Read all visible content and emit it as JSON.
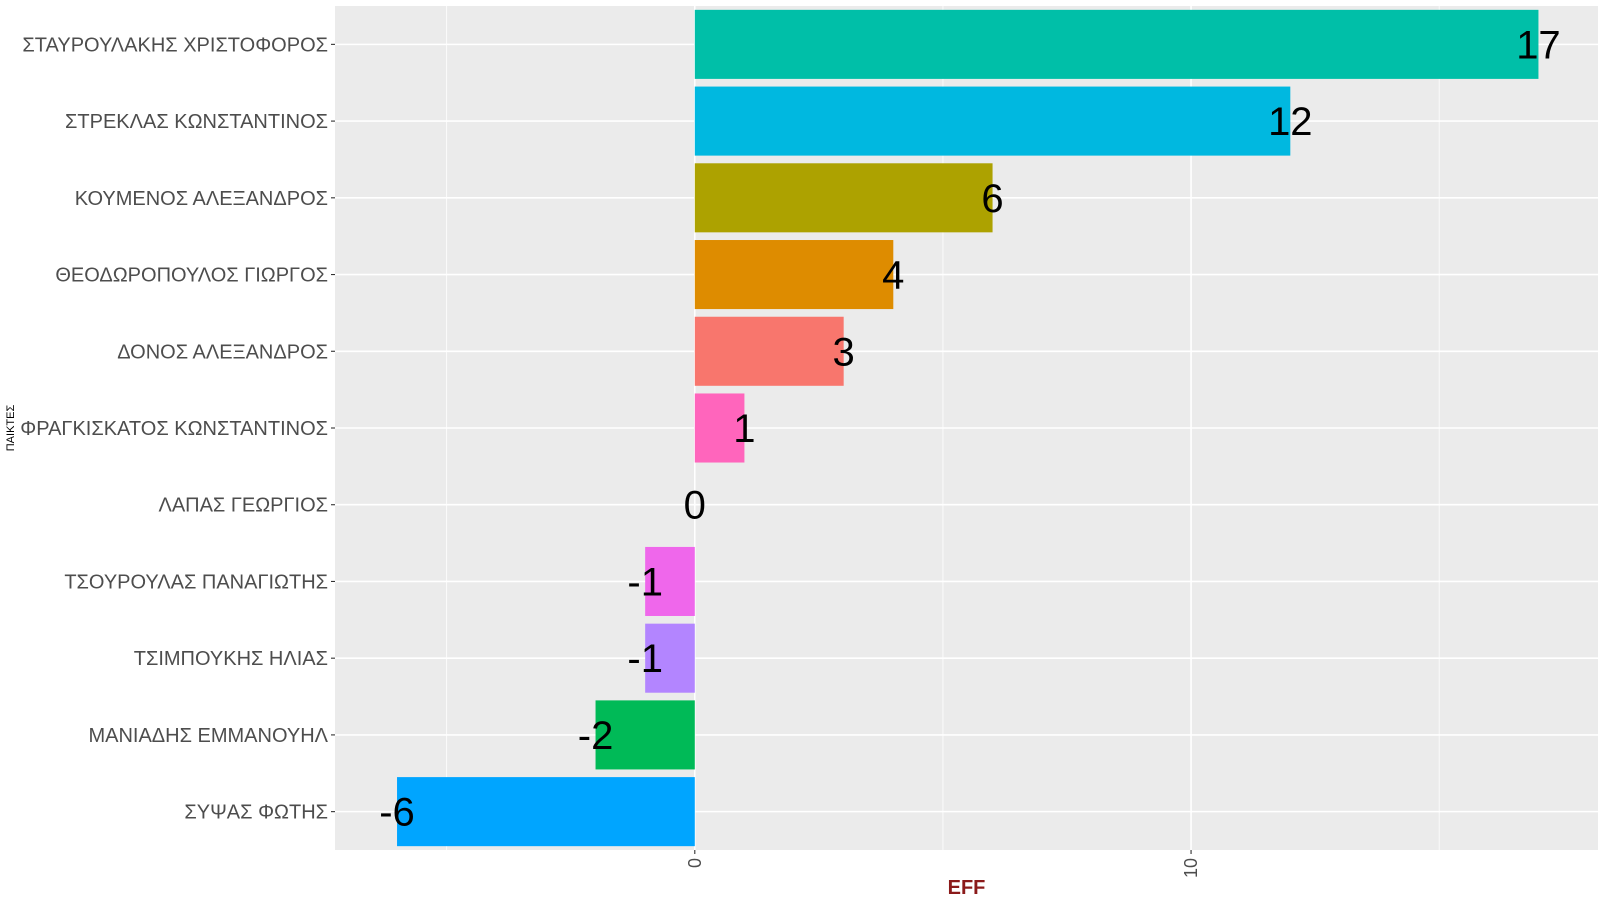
{
  "chart_data": {
    "type": "bar",
    "orientation": "horizontal",
    "xlabel": "EFF",
    "ylabel": "ΠΑΙΚΤΕΣ",
    "xlim": [
      -7.25,
      18.2
    ],
    "x_ticks": [
      0,
      10
    ],
    "grid": true,
    "legend": "none",
    "categories": [
      "ΣΤΑΥΡΟΥΛΑΚΗΣ ΧΡΙΣΤΟΦΟΡΟΣ",
      "ΣΤΡΕΚΛΑΣ ΚΩΝΣΤΑΝΤΙΝΟΣ",
      "ΚΟΥΜΕΝΟΣ ΑΛΕΞΑΝΔΡΟΣ",
      "ΘΕΟΔΩΡΟΠΟΥΛΟΣ ΓΙΩΡΓΟΣ",
      "ΔΟΝΟΣ ΑΛΕΞΑΝΔΡΟΣ",
      "ΦΡΑΓΚΙΣΚΑΤΟΣ ΚΩΝΣΤΑΝΤΙΝΟΣ",
      "ΛΑΠΑΣ ΓΕΩΡΓΙΟΣ",
      "ΤΣΟΥΡΟΥΛΑΣ ΠΑΝΑΓΙΩΤΗΣ",
      "ΤΣΙΜΠΟΥΚΗΣ ΗΛΙΑΣ",
      "ΜΑΝΙΑΔΗΣ ΕΜΜΑΝΟΥΗΛ",
      "ΣΥΨΑΣ ΦΩΤΗΣ"
    ],
    "values": [
      17,
      12,
      6,
      4,
      3,
      1,
      0,
      -1,
      -1,
      -2,
      -6
    ],
    "value_labels": [
      "17",
      "12",
      "6",
      "4",
      "3",
      "1",
      "0",
      "-1",
      "-1",
      "-2",
      "-6"
    ],
    "colors": [
      "#00BFA8",
      "#00B8E0",
      "#ADA200",
      "#DE8C00",
      "#F8766D",
      "#FF65BC",
      "#7CAE00",
      "#EF67EB",
      "#B385FF",
      "#00BA57",
      "#00A5FF"
    ],
    "colors_meta": {
      "panel_background": "#EBEBEB",
      "grid": "#FFFFFF",
      "xlabel_color": "#8B1A1A"
    }
  }
}
